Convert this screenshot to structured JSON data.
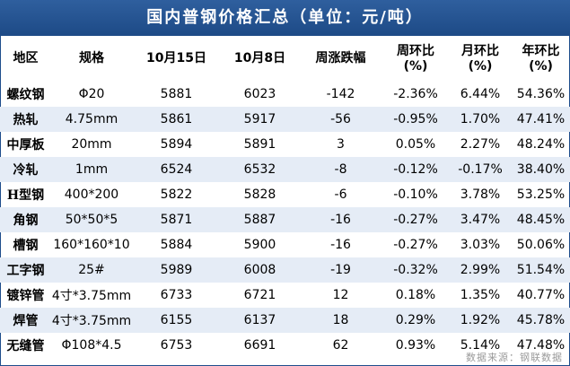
{
  "title": "国内普钢价格汇总（单位：元/吨）",
  "headers": {
    "region": "地区",
    "spec": "规格",
    "date1": "10月15日",
    "date2": "10月8日",
    "weekly_change": "周涨跌幅",
    "wow_line1": "周环比",
    "wow_line2": "(%)",
    "mom_line1": "月环比",
    "mom_line2": "(%)",
    "yoy_line1": "年环比",
    "yoy_line2": "(%)"
  },
  "rows": [
    {
      "name": "螺纹钢",
      "spec": "Φ20",
      "p1": "5881",
      "p2": "6023",
      "chg": "-142",
      "wow": "-2.36%",
      "mom": "6.44%",
      "yoy": "54.36%"
    },
    {
      "name": "热轧",
      "spec": "4.75mm",
      "p1": "5861",
      "p2": "5917",
      "chg": "-56",
      "wow": "-0.95%",
      "mom": "1.70%",
      "yoy": "47.41%"
    },
    {
      "name": "中厚板",
      "spec": "20mm",
      "p1": "5894",
      "p2": "5891",
      "chg": "3",
      "wow": "0.05%",
      "mom": "2.27%",
      "yoy": "48.24%"
    },
    {
      "name": "冷轧",
      "spec": "1mm",
      "p1": "6524",
      "p2": "6532",
      "chg": "-8",
      "wow": "-0.12%",
      "mom": "-0.17%",
      "yoy": "38.40%"
    },
    {
      "name": "H型钢",
      "spec": "400*200",
      "p1": "5822",
      "p2": "5828",
      "chg": "-6",
      "wow": "-0.10%",
      "mom": "3.78%",
      "yoy": "53.25%"
    },
    {
      "name": "角钢",
      "spec": "50*50*5",
      "p1": "5871",
      "p2": "5887",
      "chg": "-16",
      "wow": "-0.27%",
      "mom": "3.47%",
      "yoy": "48.45%"
    },
    {
      "name": "槽钢",
      "spec": "160*160*10",
      "p1": "5884",
      "p2": "5900",
      "chg": "-16",
      "wow": "-0.27%",
      "mom": "3.03%",
      "yoy": "50.06%"
    },
    {
      "name": "工字钢",
      "spec": "25#",
      "p1": "5989",
      "p2": "6008",
      "chg": "-19",
      "wow": "-0.32%",
      "mom": "2.99%",
      "yoy": "51.54%"
    },
    {
      "name": "镀锌管",
      "spec": "4寸*3.75mm",
      "p1": "6733",
      "p2": "6721",
      "chg": "12",
      "wow": "0.18%",
      "mom": "1.35%",
      "yoy": "40.77%"
    },
    {
      "name": "焊管",
      "spec": "4寸*3.75mm",
      "p1": "6155",
      "p2": "6137",
      "chg": "18",
      "wow": "0.29%",
      "mom": "1.92%",
      "yoy": "45.78%"
    },
    {
      "name": "无缝管",
      "spec": "Φ108*4.5",
      "p1": "6753",
      "p2": "6691",
      "chg": "62",
      "wow": "0.93%",
      "mom": "5.14%",
      "yoy": "47.48%"
    }
  ],
  "source": "数据来源：钢联数据",
  "colors": {
    "header_bg": "#1d4a86",
    "stripe": "#e5ecf6",
    "up": "#e5001c",
    "down": "#0b8e3d"
  }
}
